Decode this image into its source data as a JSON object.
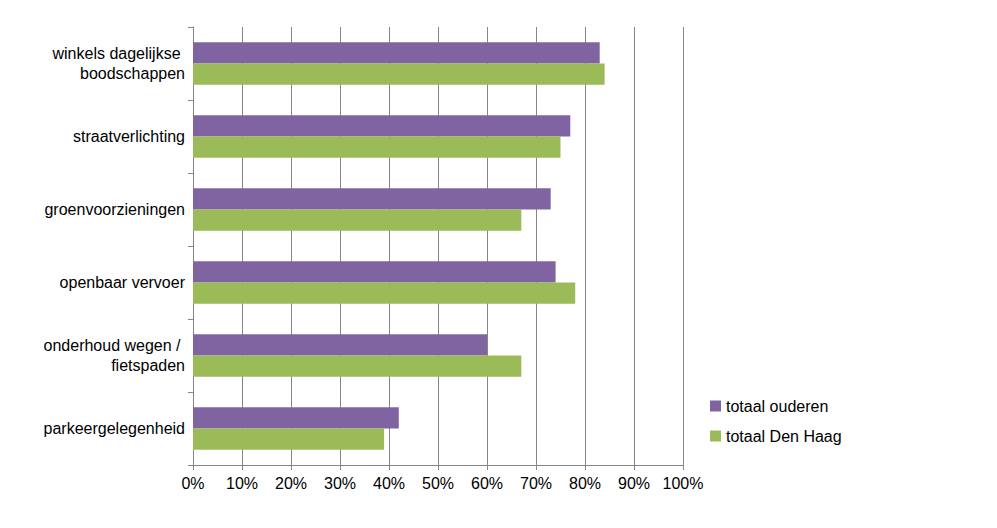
{
  "chart_data": {
    "type": "bar",
    "orientation": "horizontal",
    "categories": [
      "winkels dagelijkse boodschappen",
      "straatverlichting",
      "groenvoorzieningen",
      "openbaar vervoer",
      "onderhoud wegen / fietspaden",
      "parkeergelegenheid"
    ],
    "series": [
      {
        "name": "totaal ouderen",
        "color": "#8064a2",
        "values": [
          83,
          77,
          73,
          74,
          60,
          42
        ]
      },
      {
        "name": "totaal Den Haag",
        "color": "#9bbb59",
        "values": [
          84,
          75,
          67,
          78,
          67,
          39
        ]
      }
    ],
    "xlim": [
      0,
      100
    ],
    "xticks": [
      {
        "value": 0,
        "label": "0%"
      },
      {
        "value": 10,
        "label": "10%"
      },
      {
        "value": 20,
        "label": "20%"
      },
      {
        "value": 30,
        "label": "30%"
      },
      {
        "value": 40,
        "label": "40%"
      },
      {
        "value": 50,
        "label": "50%"
      },
      {
        "value": 60,
        "label": "60%"
      },
      {
        "value": 70,
        "label": "70%"
      },
      {
        "value": 80,
        "label": "80%"
      },
      {
        "value": 90,
        "label": "90%"
      },
      {
        "value": 100,
        "label": "100%"
      }
    ],
    "grid": true,
    "legend": "right"
  }
}
